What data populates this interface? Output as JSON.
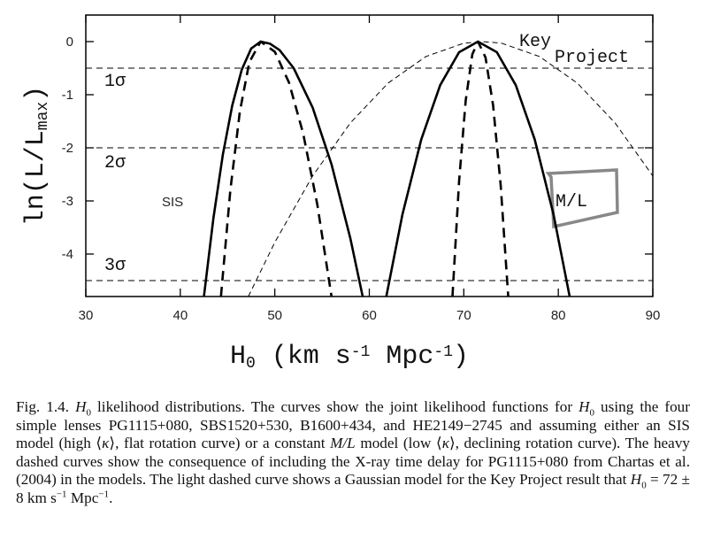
{
  "chart_data": {
    "type": "line",
    "x_label": [
      {
        "text": "H"
      },
      {
        "text": "0",
        "sub": true
      },
      {
        "text": " (km s"
      },
      {
        "text": "-1",
        "sup": true
      },
      {
        "text": " Mpc"
      },
      {
        "text": "-1",
        "sup": true
      },
      {
        "text": ")"
      }
    ],
    "y_label": [
      {
        "text": "ln(L/L"
      },
      {
        "text": "max",
        "sub": true
      },
      {
        "text": ")"
      }
    ],
    "xlim": [
      30,
      90
    ],
    "ylim": [
      -4.8,
      0.5
    ],
    "xticks": [
      30,
      40,
      50,
      60,
      70,
      80,
      90
    ],
    "yticks": [
      0,
      -1,
      -2,
      -3,
      -4
    ],
    "reference_lines": [
      {
        "value": -0.5,
        "label": "1σ"
      },
      {
        "value": -2,
        "label": "2σ"
      },
      {
        "value": -4.5,
        "label": "3σ"
      }
    ],
    "annotations": [
      "SIS",
      "M/L",
      "Key",
      "Project"
    ],
    "series": [
      {
        "line_style": "solid",
        "color": "#000000",
        "x": [
          42.5,
          43.5,
          44.5,
          45.5,
          46.5,
          47.5,
          48.5,
          49.5,
          50.5,
          52,
          54,
          56,
          58,
          59.3
        ],
        "values": [
          -4.8,
          -3.33,
          -2.13,
          -1.2,
          -0.53,
          -0.13,
          0,
          -0.04,
          -0.16,
          -0.5,
          -1.24,
          -2.31,
          -3.71,
          -4.8
        ]
      },
      {
        "line_style": "heavy-dashed",
        "color": "#000000",
        "x": [
          44.3,
          45.3,
          46.3,
          47.3,
          48.5,
          50,
          51.5,
          53,
          54.5,
          56
        ],
        "values": [
          -4.8,
          -2.79,
          -1.32,
          -0.39,
          0,
          -0.19,
          -0.77,
          -1.73,
          -3.07,
          -4.8
        ]
      },
      {
        "line_style": "solid",
        "color": "#000000",
        "x": [
          61.8,
          63.5,
          65.5,
          67.5,
          69.5,
          71.5,
          73.5,
          75.5,
          77.5,
          79.5,
          81.2
        ],
        "values": [
          -4.8,
          -3.26,
          -1.84,
          -0.82,
          -0.2,
          0,
          -0.2,
          -0.82,
          -1.84,
          -3.26,
          -4.8
        ]
      },
      {
        "line_style": "heavy-dashed",
        "color": "#000000",
        "x": [
          68.8,
          69.5,
          70.2,
          70.9,
          71.5,
          72.3,
          73.1,
          73.9,
          74.7
        ],
        "values": [
          -4.8,
          -2.63,
          -1.11,
          -0.24,
          0,
          -0.3,
          -1.2,
          -2.7,
          -4.8
        ]
      },
      {
        "line_style": "light-dashed",
        "color": "#000000",
        "x": [
          47.2,
          50,
          54,
          58,
          62,
          66,
          70,
          72,
          74,
          78,
          82,
          86,
          90
        ],
        "values": [
          -4.8,
          -3.78,
          -2.53,
          -1.53,
          -0.78,
          -0.28,
          -0.03,
          0,
          -0.03,
          -0.28,
          -0.78,
          -1.53,
          -2.53
        ]
      }
    ],
    "caption": [
      {
        "text": "Fig. 1.4. "
      },
      {
        "text": "H",
        "italic": true
      },
      {
        "text": "0",
        "sub": true
      },
      {
        "text": " likelihood distributions. The curves show the joint likelihood functions for "
      },
      {
        "text": "H",
        "italic": true
      },
      {
        "text": "0",
        "sub": true
      },
      {
        "text": " using the four simple lenses PG1115+080, SBS1520+530, B1600+434, and HE2149−2745 and assuming either an SIS model (high ⟨"
      },
      {
        "text": "κ",
        "italic": true
      },
      {
        "text": "⟩, flat rotation curve) or a constant "
      },
      {
        "text": "M/L",
        "italic": true
      },
      {
        "text": " model (low ⟨"
      },
      {
        "text": "κ",
        "italic": true
      },
      {
        "text": "⟩, declining rotation curve).  The heavy dashed curves show the consequence of including the X-ray time delay for PG1115+080 from Chartas et al. (2004) in the models. The light dashed curve shows a Gaussian model for the Key Project result that "
      },
      {
        "text": "H",
        "italic": true
      },
      {
        "text": "0",
        "sub": true
      },
      {
        "text": " = 72 ± 8  km s"
      },
      {
        "text": "−1",
        "sup": true
      },
      {
        "text": " Mpc"
      },
      {
        "text": "−1",
        "sup": true
      },
      {
        "text": "."
      }
    ]
  }
}
